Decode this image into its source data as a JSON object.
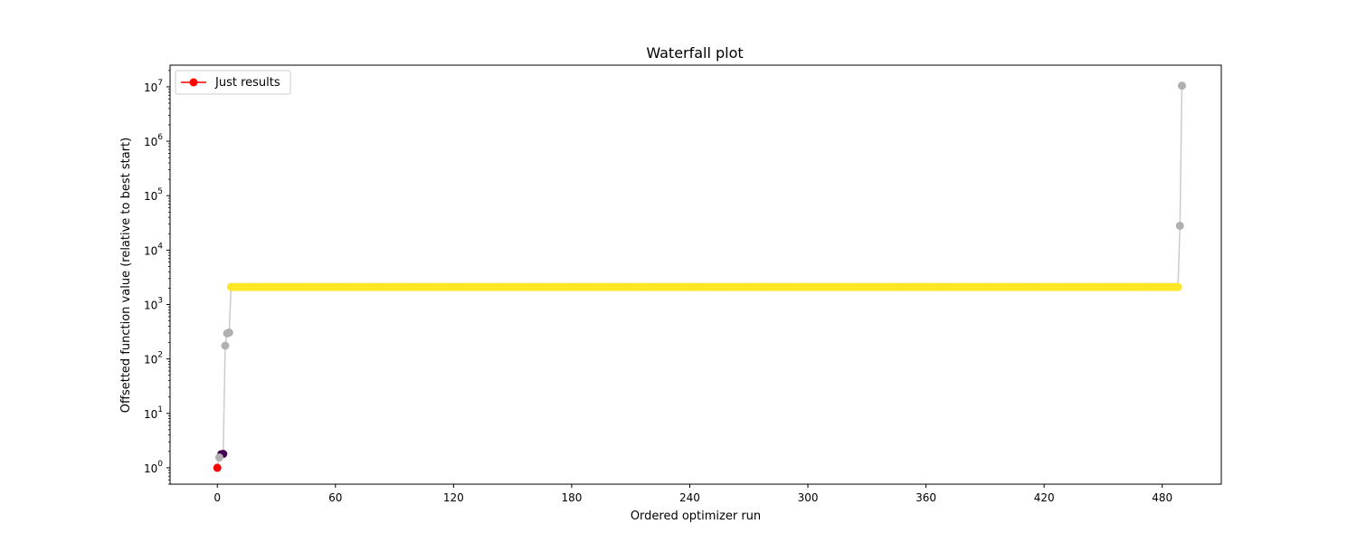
{
  "chart_data": {
    "type": "scatter",
    "title": "Waterfall plot",
    "xlabel": "Ordered optimizer run",
    "ylabel": "Offsetted function value (relative to best start)",
    "yscale": "log",
    "xlim": [
      -24,
      510
    ],
    "ylim": [
      0.5,
      25000000
    ],
    "x_ticks": [
      0,
      60,
      120,
      180,
      240,
      300,
      360,
      420,
      480
    ],
    "y_ticks": [
      1,
      10,
      100,
      1000,
      10000,
      100000,
      1000000,
      10000000
    ],
    "y_tick_labels": [
      {
        "base": "10",
        "exp": "0"
      },
      {
        "base": "10",
        "exp": "1"
      },
      {
        "base": "10",
        "exp": "2"
      },
      {
        "base": "10",
        "exp": "3"
      },
      {
        "base": "10",
        "exp": "4"
      },
      {
        "base": "10",
        "exp": "5"
      },
      {
        "base": "10",
        "exp": "6"
      },
      {
        "base": "10",
        "exp": "7"
      }
    ],
    "legend": {
      "placement": "upper-left",
      "entries": [
        {
          "label": "Just results",
          "color": "#ff0000"
        }
      ]
    },
    "line_color": "#cccccc",
    "colors": {
      "best": "#ff0000",
      "grey": "#b0b0b0",
      "purple": "#440154",
      "yellow": "#fde725"
    },
    "plateau": {
      "from": 7,
      "to": 487,
      "value": 2100,
      "color": "yellow"
    },
    "points": [
      {
        "x": 0,
        "y": 1.0,
        "color": "best"
      },
      {
        "x": 1,
        "y": 1.55,
        "color": "grey"
      },
      {
        "x": 2,
        "y": 1.78,
        "color": "purple"
      },
      {
        "x": 3,
        "y": 1.8,
        "color": "purple"
      },
      {
        "x": 4,
        "y": 175,
        "color": "grey"
      },
      {
        "x": 5,
        "y": 295,
        "color": "grey"
      },
      {
        "x": 6,
        "y": 305,
        "color": "grey"
      },
      {
        "x": 488,
        "y": 2100,
        "color": "yellow"
      },
      {
        "x": 489,
        "y": 28000,
        "color": "grey"
      },
      {
        "x": 490,
        "y": 10500000,
        "color": "grey"
      }
    ]
  }
}
